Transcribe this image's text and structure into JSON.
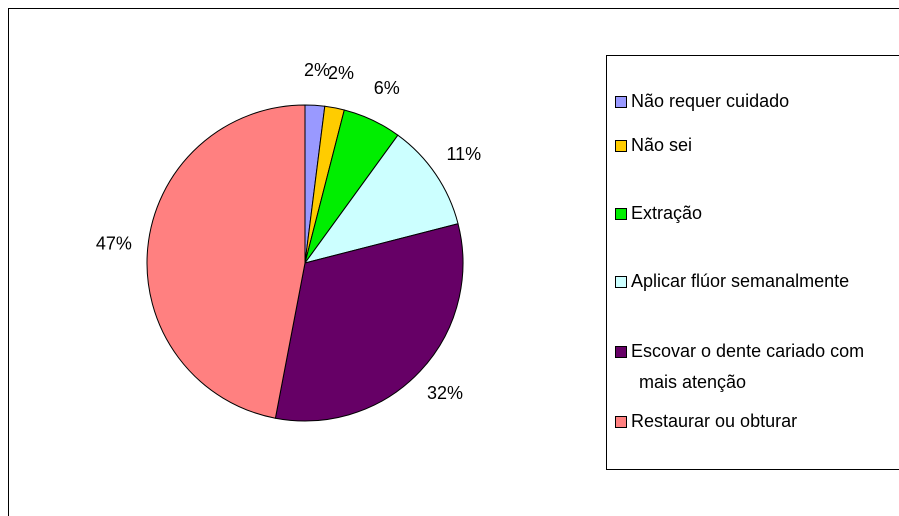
{
  "chart_data": {
    "type": "pie",
    "categories": [
      "Não requer cuidado",
      "Não sei",
      "Extração",
      "Aplicar flúor semanalmente",
      "Escovar o dente cariado com mais atenção",
      "Restaurar ou obturar"
    ],
    "values": [
      2,
      2,
      6,
      11,
      32,
      47
    ],
    "value_labels": [
      "2%",
      "2%",
      "6%",
      "11%",
      "32%",
      "47%"
    ],
    "colors": [
      "#9999ff",
      "#ffcc00",
      "#00ee00",
      "#ccffff",
      "#660066",
      "#ff8080"
    ],
    "legend": "right"
  }
}
